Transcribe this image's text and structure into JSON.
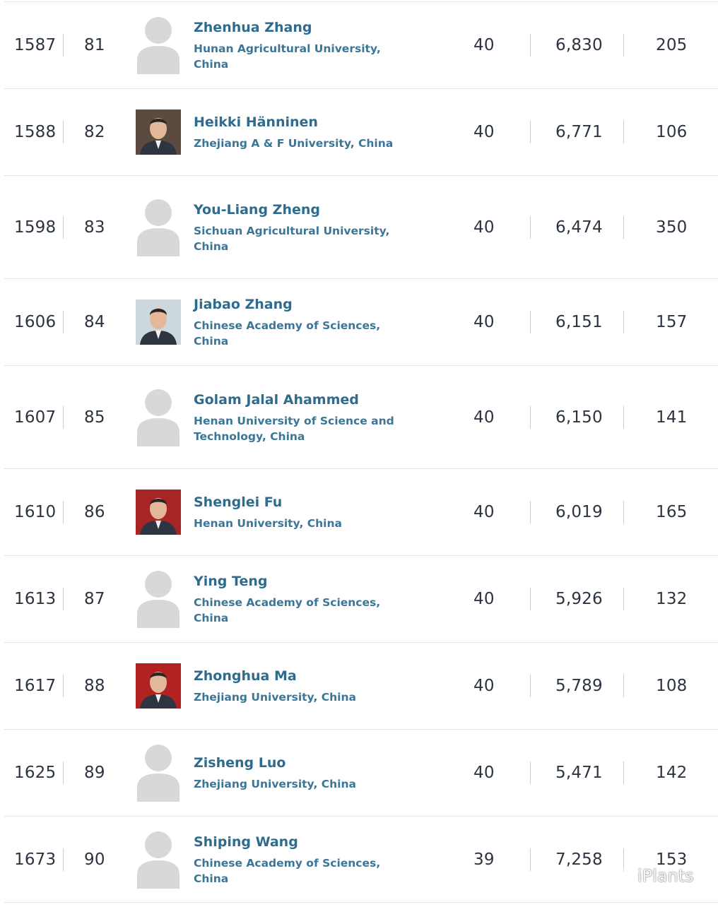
{
  "rows": [
    {
      "world_rank": "1587",
      "national_rank": "81",
      "name": "Zhenhua Zhang",
      "affiliation": "Hunan Agricultural University, China",
      "h_index": "40",
      "citations": "6,830",
      "publications": "205",
      "photo": "placeholder-avatar"
    },
    {
      "world_rank": "1588",
      "national_rank": "82",
      "name": "Heikki Hänninen",
      "affiliation": "Zhejiang A & F University, China",
      "h_index": "40",
      "citations": "6,771",
      "publications": "106",
      "photo": "portrait"
    },
    {
      "world_rank": "1598",
      "national_rank": "83",
      "name": "You-Liang Zheng",
      "affiliation": "Sichuan Agricultural University, China",
      "h_index": "40",
      "citations": "6,474",
      "publications": "350",
      "photo": "placeholder-avatar"
    },
    {
      "world_rank": "1606",
      "national_rank": "84",
      "name": "Jiabao Zhang",
      "affiliation": "Chinese Academy of Sciences, China",
      "h_index": "40",
      "citations": "6,151",
      "publications": "157",
      "photo": "portrait"
    },
    {
      "world_rank": "1607",
      "national_rank": "85",
      "name": "Golam Jalal Ahammed",
      "affiliation": "Henan University of Science and Technology, China",
      "h_index": "40",
      "citations": "6,150",
      "publications": "141",
      "photo": "placeholder-avatar"
    },
    {
      "world_rank": "1610",
      "national_rank": "86",
      "name": "Shenglei Fu",
      "affiliation": "Henan University, China",
      "h_index": "40",
      "citations": "6,019",
      "publications": "165",
      "photo": "portrait"
    },
    {
      "world_rank": "1613",
      "national_rank": "87",
      "name": "Ying Teng",
      "affiliation": "Chinese Academy of Sciences, China",
      "h_index": "40",
      "citations": "5,926",
      "publications": "132",
      "photo": "placeholder-avatar"
    },
    {
      "world_rank": "1617",
      "national_rank": "88",
      "name": "Zhonghua Ma",
      "affiliation": "Zhejiang University, China",
      "h_index": "40",
      "citations": "5,789",
      "publications": "108",
      "photo": "portrait"
    },
    {
      "world_rank": "1625",
      "national_rank": "89",
      "name": "Zisheng Luo",
      "affiliation": "Zhejiang University, China",
      "h_index": "40",
      "citations": "5,471",
      "publications": "142",
      "photo": "placeholder-avatar"
    },
    {
      "world_rank": "1673",
      "national_rank": "90",
      "name": "Shiping Wang",
      "affiliation": "Chinese Academy of Sciences, China",
      "h_index": "39",
      "citations": "7,258",
      "publications": "153",
      "photo": "placeholder-avatar"
    }
  ],
  "watermark": {
    "text": "iPlants",
    "icon": "wechat-icon"
  },
  "colors": {
    "name": "#2e6b8c",
    "affiliation": "#3a7697",
    "number": "#2b3440",
    "divider": "#e3e6e8",
    "placeholder": "#d8d8d8"
  }
}
